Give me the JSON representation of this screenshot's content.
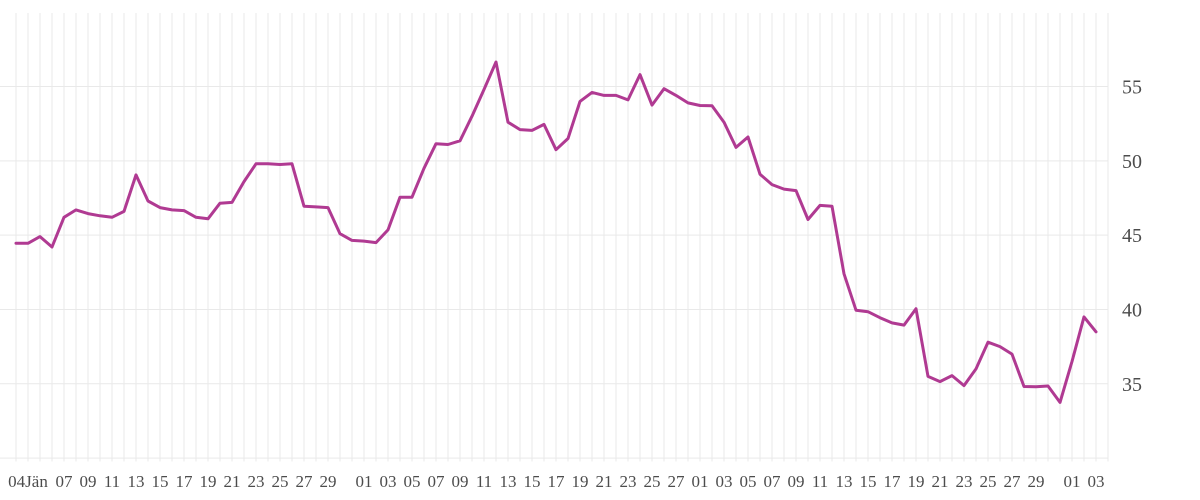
{
  "chart_data": {
    "type": "line",
    "title": "",
    "xlabel": "",
    "ylabel": "",
    "legend": false,
    "grid": true,
    "ylim": [
      30,
      60
    ],
    "y_ticks": [
      55,
      50,
      45,
      40,
      35
    ],
    "y_baseline_value": 30,
    "x_unit": "day",
    "n_points": 91,
    "x_tick_labels": [
      {
        "text": "04Jän",
        "day": 1
      },
      {
        "text": "07",
        "day": 4
      },
      {
        "text": "09",
        "day": 6
      },
      {
        "text": "11",
        "day": 8
      },
      {
        "text": "13",
        "day": 10
      },
      {
        "text": "15",
        "day": 12
      },
      {
        "text": "17",
        "day": 14
      },
      {
        "text": "19",
        "day": 16
      },
      {
        "text": "21",
        "day": 18
      },
      {
        "text": "23",
        "day": 20
      },
      {
        "text": "25",
        "day": 22
      },
      {
        "text": "27",
        "day": 24
      },
      {
        "text": "29",
        "day": 26
      },
      {
        "text": "01",
        "day": 29
      },
      {
        "text": "03",
        "day": 31
      },
      {
        "text": "05",
        "day": 33
      },
      {
        "text": "07",
        "day": 35
      },
      {
        "text": "09",
        "day": 37
      },
      {
        "text": "11",
        "day": 39
      },
      {
        "text": "13",
        "day": 41
      },
      {
        "text": "15",
        "day": 43
      },
      {
        "text": "17",
        "day": 45
      },
      {
        "text": "19",
        "day": 47
      },
      {
        "text": "21",
        "day": 49
      },
      {
        "text": "23",
        "day": 51
      },
      {
        "text": "25",
        "day": 53
      },
      {
        "text": "27",
        "day": 55
      },
      {
        "text": "01",
        "day": 57
      },
      {
        "text": "03",
        "day": 59
      },
      {
        "text": "05",
        "day": 61
      },
      {
        "text": "07",
        "day": 63
      },
      {
        "text": "09",
        "day": 65
      },
      {
        "text": "11",
        "day": 67
      },
      {
        "text": "13",
        "day": 69
      },
      {
        "text": "15",
        "day": 71
      },
      {
        "text": "17",
        "day": 73
      },
      {
        "text": "19",
        "day": 75
      },
      {
        "text": "21",
        "day": 77
      },
      {
        "text": "23",
        "day": 79
      },
      {
        "text": "25",
        "day": 81
      },
      {
        "text": "27",
        "day": 83
      },
      {
        "text": "29",
        "day": 85
      },
      {
        "text": "01",
        "day": 88
      },
      {
        "text": "03",
        "day": 90
      }
    ],
    "series": [
      {
        "name": "value",
        "color": "#b03a92",
        "values": [
          44.45,
          44.45,
          44.9,
          44.2,
          46.2,
          46.7,
          46.45,
          46.3,
          46.2,
          46.6,
          49.05,
          47.3,
          46.85,
          46.7,
          46.65,
          46.2,
          46.1,
          47.15,
          47.2,
          48.6,
          49.8,
          49.8,
          49.75,
          49.8,
          46.95,
          46.9,
          46.85,
          45.1,
          44.65,
          44.6,
          44.5,
          45.35,
          47.55,
          47.55,
          49.5,
          51.15,
          51.1,
          51.35,
          53.0,
          54.8,
          56.65,
          52.6,
          52.1,
          52.05,
          52.45,
          50.75,
          51.5,
          54.0,
          54.6,
          54.4,
          54.4,
          54.1,
          55.8,
          53.75,
          54.85,
          54.4,
          53.9,
          53.72,
          53.7,
          52.6,
          50.9,
          51.6,
          49.1,
          48.4,
          48.1,
          48.0,
          46.05,
          47.0,
          46.95,
          42.4,
          39.95,
          39.85,
          39.45,
          39.1,
          38.95,
          40.05,
          35.5,
          35.15,
          35.55,
          34.88,
          36.0,
          37.8,
          37.5,
          37.0,
          34.82,
          34.8,
          34.85,
          33.75,
          36.5,
          39.5,
          38.5
        ]
      }
    ]
  },
  "colors": {
    "background": "#ffffff",
    "grid": "#e9e9e9",
    "axis_text": "#4c4c4c",
    "line": "#b03a92"
  }
}
